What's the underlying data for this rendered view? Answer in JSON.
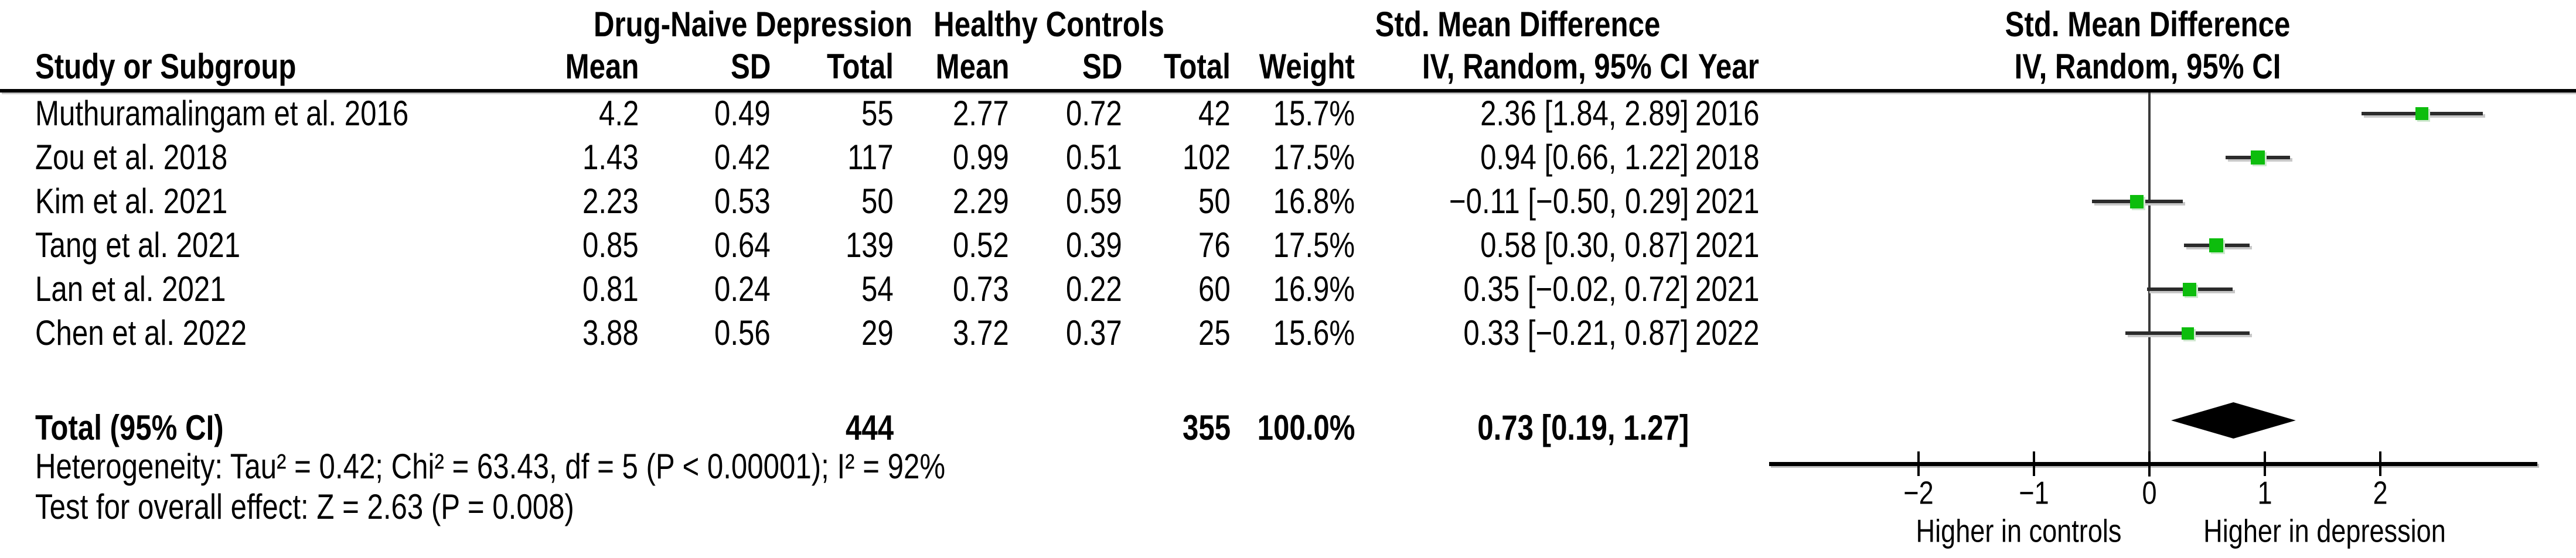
{
  "table": {
    "group_headers": {
      "depression": "Drug-Naive Depression",
      "controls": "Healthy Controls",
      "smd_text_col": "Std. Mean Difference"
    },
    "columns": {
      "study": "Study or Subgroup",
      "mean_dep": "Mean",
      "sd_dep": "SD",
      "total_dep": "Total",
      "mean_ctrl": "Mean",
      "sd_ctrl": "SD",
      "total_ctrl": "Total",
      "weight": "Weight",
      "ci": "IV, Random, 95% CI",
      "year": "Year"
    },
    "rows": [
      {
        "study": "Muthuramalingam et al. 2016",
        "mean_dep": "4.2",
        "sd_dep": "0.49",
        "total_dep": "55",
        "mean_ctrl": "2.77",
        "sd_ctrl": "0.72",
        "total_ctrl": "42",
        "weight": "15.7%",
        "ci": "2.36 [1.84, 2.89]",
        "year": "2016"
      },
      {
        "study": "Zou et al. 2018",
        "mean_dep": "1.43",
        "sd_dep": "0.42",
        "total_dep": "117",
        "mean_ctrl": "0.99",
        "sd_ctrl": "0.51",
        "total_ctrl": "102",
        "weight": "17.5%",
        "ci": "0.94 [0.66, 1.22]",
        "year": "2018"
      },
      {
        "study": "Kim et al. 2021",
        "mean_dep": "2.23",
        "sd_dep": "0.53",
        "total_dep": "50",
        "mean_ctrl": "2.29",
        "sd_ctrl": "0.59",
        "total_ctrl": "50",
        "weight": "16.8%",
        "ci": "−0.11 [−0.50, 0.29]",
        "year": "2021"
      },
      {
        "study": "Tang et al. 2021",
        "mean_dep": "0.85",
        "sd_dep": "0.64",
        "total_dep": "139",
        "mean_ctrl": "0.52",
        "sd_ctrl": "0.39",
        "total_ctrl": "76",
        "weight": "17.5%",
        "ci": "0.58 [0.30, 0.87]",
        "year": "2021"
      },
      {
        "study": "Lan et al. 2021",
        "mean_dep": "0.81",
        "sd_dep": "0.24",
        "total_dep": "54",
        "mean_ctrl": "0.73",
        "sd_ctrl": "0.22",
        "total_ctrl": "60",
        "weight": "16.9%",
        "ci": "0.35 [−0.02, 0.72]",
        "year": "2021"
      },
      {
        "study": "Chen et al. 2022",
        "mean_dep": "3.88",
        "sd_dep": "0.56",
        "total_dep": "29",
        "mean_ctrl": "3.72",
        "sd_ctrl": "0.37",
        "total_ctrl": "25",
        "weight": "15.6%",
        "ci": "0.33 [−0.21, 0.87]",
        "year": "2022"
      }
    ],
    "total_row": {
      "label": "Total (95% CI)",
      "total_dep": "444",
      "total_ctrl": "355",
      "weight": "100.0%",
      "ci": "0.73 [0.19, 1.27]"
    },
    "heterogeneity": "Heterogeneity: Tau² = 0.42; Chi² = 63.43, df = 5 (P < 0.00001); I² = 92%",
    "overall_effect": "Test for overall effect: Z = 2.63 (P = 0.008)"
  },
  "chart_data": {
    "type": "forest",
    "title_line1": "Std. Mean Difference",
    "title_line2": "IV, Random, 95% CI",
    "effect_measure": "Std. Mean Difference (IV, Random, 95% CI)",
    "studies": [
      {
        "label": "Muthuramalingam et al. 2016",
        "smd": 2.36,
        "ci_low": 1.84,
        "ci_high": 2.89,
        "weight_pct": 15.7
      },
      {
        "label": "Zou et al. 2018",
        "smd": 0.94,
        "ci_low": 0.66,
        "ci_high": 1.22,
        "weight_pct": 17.5
      },
      {
        "label": "Kim et al. 2021",
        "smd": -0.11,
        "ci_low": -0.5,
        "ci_high": 0.29,
        "weight_pct": 16.8
      },
      {
        "label": "Tang et al. 2021",
        "smd": 0.58,
        "ci_low": 0.3,
        "ci_high": 0.87,
        "weight_pct": 17.5
      },
      {
        "label": "Lan et al. 2021",
        "smd": 0.35,
        "ci_low": -0.02,
        "ci_high": 0.72,
        "weight_pct": 16.9
      },
      {
        "label": "Chen et al. 2022",
        "smd": 0.33,
        "ci_low": -0.21,
        "ci_high": 0.87,
        "weight_pct": 15.6
      }
    ],
    "overall": {
      "smd": 0.73,
      "ci_low": 0.19,
      "ci_high": 1.27
    },
    "x_ticks": [
      -2,
      -1,
      0,
      1,
      2
    ],
    "x_tick_labels": [
      "−2",
      "−1",
      "0",
      "1",
      "2"
    ],
    "xlim": [
      -3.3,
      3.36
    ],
    "axis_label_left": "Higher in controls",
    "axis_label_right": "Higher in depression",
    "marker_color": "#0dbd0d",
    "line_color": "#2b2b2b",
    "diamond_color": "#000000"
  }
}
